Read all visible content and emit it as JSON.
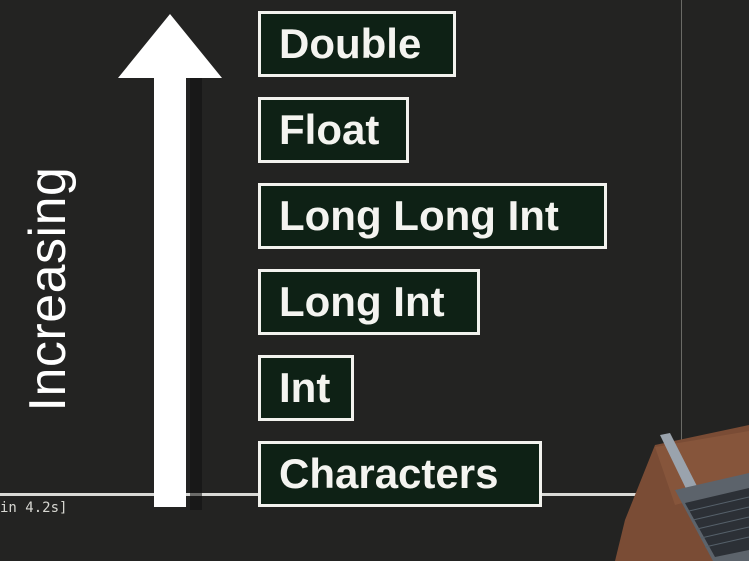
{
  "terminal": {
    "timing_text": "in 4.2s]"
  },
  "diagram": {
    "axis_label": "Increasing",
    "arrow_color": "#ffffff",
    "box_fill": "#0e2115",
    "box_border": "#f2f2ee",
    "types": [
      {
        "label": "Double"
      },
      {
        "label": "Float"
      },
      {
        "label": "Long Long Int"
      },
      {
        "label": "Long Int"
      },
      {
        "label": "Int"
      },
      {
        "label": "Characters"
      }
    ]
  },
  "background_color": "#232322"
}
